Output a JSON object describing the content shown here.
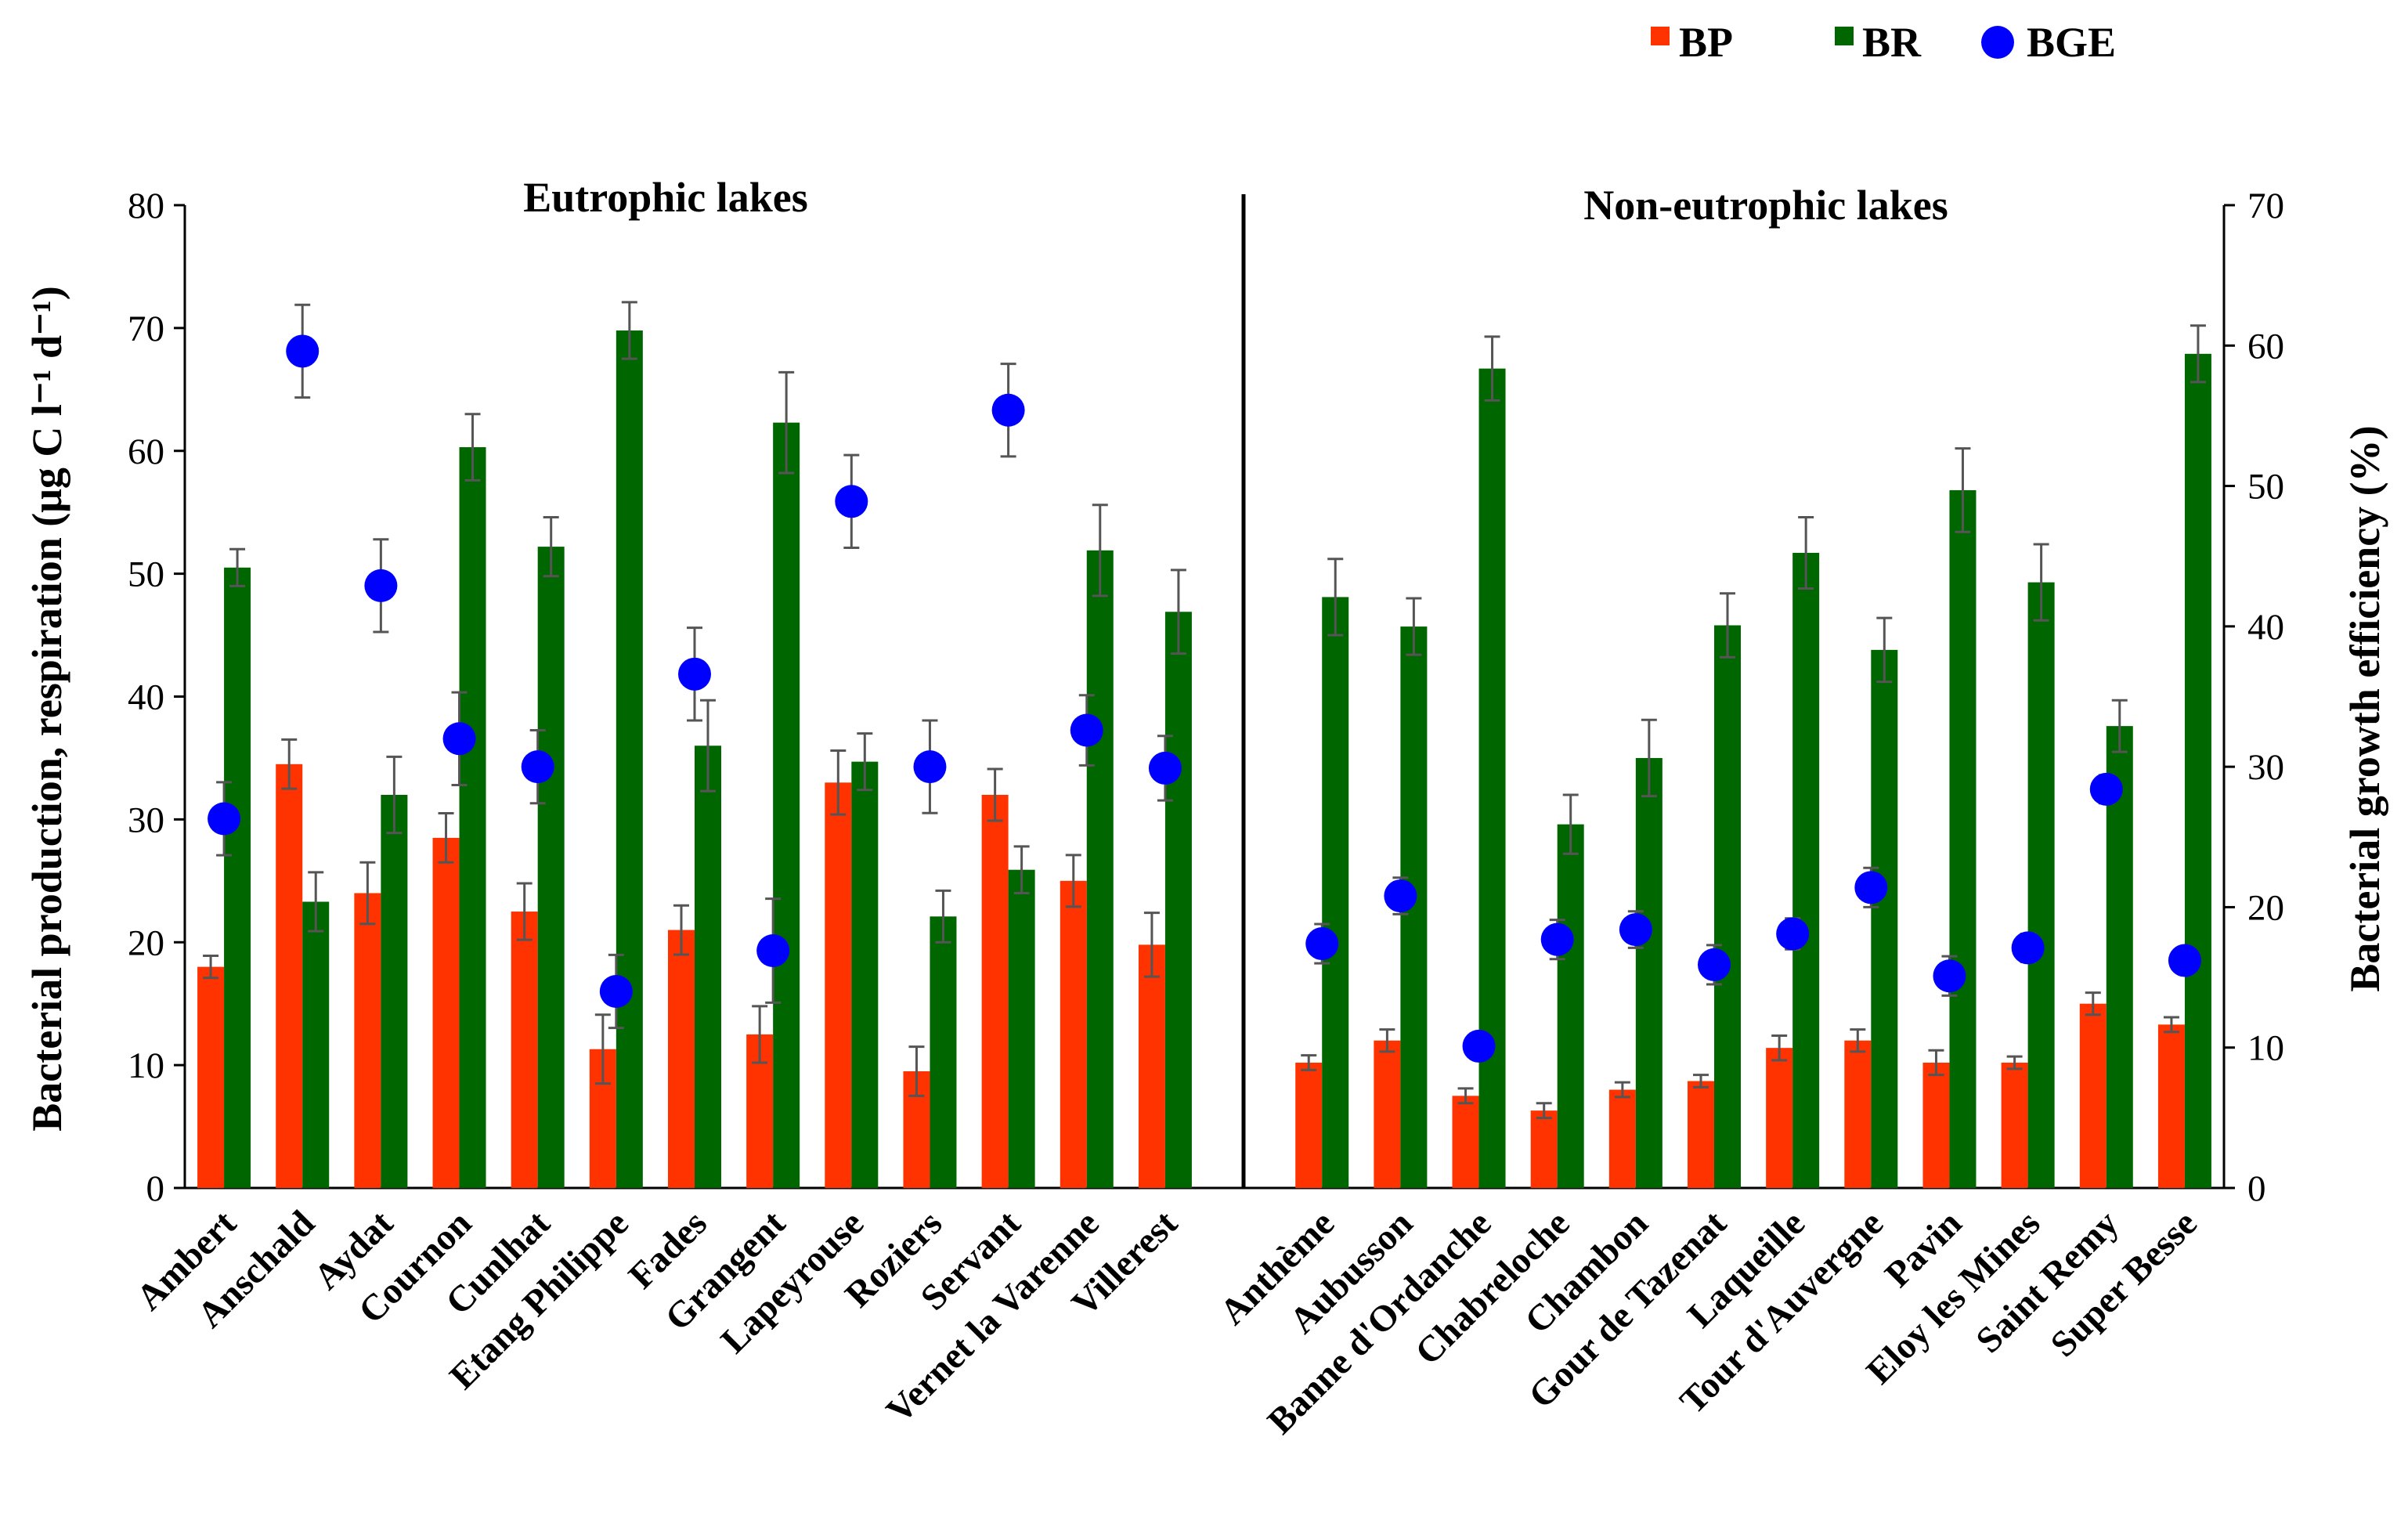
{
  "chart_data": {
    "type": "bar",
    "categories": [
      "Ambert",
      "Anschald",
      "Aydat",
      "Cournon",
      "Cunlhat",
      "Etang Philippe",
      "Fades",
      "Grangent",
      "Lapeyrouse",
      "Roziers",
      "Servant",
      "Vernet la Varenne",
      "Villerest",
      "",
      "Anthème",
      "Aubusson",
      "Banne d'Ordanche",
      "Chabreloche",
      "Chambon",
      "Gour de Tazenat",
      "Laqueille",
      "Tour d'Auvergne",
      "Pavin",
      "Eloy les Mines",
      "Saint Remy",
      "Super Besse"
    ],
    "ylabel_left": "Bacterial production, respiration (μg C l⁻¹ d⁻¹)",
    "ylabel_right": "Bacterial growth efficiency (%)",
    "ylim_left": [
      0,
      80
    ],
    "ylim_right": [
      0,
      70
    ],
    "yticks_left": [
      "0",
      "10",
      "20",
      "30",
      "40",
      "50",
      "60",
      "70",
      "80"
    ],
    "yticks_right": [
      "0",
      "10",
      "20",
      "30",
      "40",
      "50",
      "60",
      "70"
    ],
    "group_labels": [
      "Eutrophic lakes",
      "Non-eutrophic lakes"
    ],
    "grid": false,
    "legend_position": "top-right",
    "colors": {
      "BP": "#ff3300",
      "BR": "#006600",
      "BGE": "#0000ff",
      "error": "#555555"
    },
    "series": [
      {
        "name": "BP",
        "type": "bar",
        "axis": "left",
        "values": [
          18.0,
          34.5,
          24.0,
          28.5,
          22.5,
          11.3,
          21.0,
          12.5,
          33.0,
          9.5,
          32.0,
          25.0,
          19.8,
          null,
          10.2,
          12.0,
          7.5,
          6.3,
          8.0,
          8.7,
          11.4,
          12.0,
          10.2,
          10.2,
          15.0,
          13.3
        ],
        "errors": [
          0.9,
          2.0,
          2.5,
          2.0,
          2.3,
          2.8,
          2.0,
          2.3,
          2.6,
          2.0,
          2.1,
          2.1,
          2.6,
          null,
          0.6,
          0.9,
          0.6,
          0.6,
          0.6,
          0.5,
          1.0,
          0.9,
          1.0,
          0.5,
          0.9,
          0.6
        ]
      },
      {
        "name": "BR",
        "type": "bar",
        "axis": "left",
        "values": [
          50.5,
          23.3,
          32.0,
          60.3,
          52.2,
          69.8,
          36.0,
          62.3,
          34.7,
          22.1,
          25.9,
          51.9,
          46.9,
          null,
          48.1,
          45.7,
          66.7,
          29.6,
          35.0,
          45.8,
          51.7,
          43.8,
          56.8,
          49.3,
          37.6,
          67.9
        ],
        "errors": [
          1.5,
          2.4,
          3.1,
          2.7,
          2.4,
          2.3,
          3.7,
          4.1,
          2.3,
          2.1,
          1.9,
          3.7,
          3.4,
          null,
          3.1,
          2.3,
          2.6,
          2.4,
          3.1,
          2.6,
          2.9,
          2.6,
          3.4,
          3.1,
          2.1,
          2.3
        ]
      },
      {
        "name": "BGE",
        "type": "scatter",
        "axis": "right",
        "values": [
          26.3,
          59.6,
          42.9,
          32.0,
          30.0,
          14.0,
          36.6,
          16.9,
          48.9,
          30.0,
          55.4,
          32.6,
          29.9,
          null,
          17.4,
          20.8,
          10.1,
          17.7,
          18.4,
          15.9,
          18.1,
          21.4,
          15.1,
          17.1,
          28.4,
          16.2
        ],
        "errors": [
          2.6,
          3.3,
          3.3,
          3.3,
          2.6,
          2.6,
          3.3,
          3.7,
          3.3,
          3.3,
          3.3,
          2.5,
          2.3,
          null,
          1.4,
          1.3,
          0.8,
          1.4,
          1.3,
          1.4,
          1.1,
          1.4,
          1.4,
          1.0,
          1.0,
          0.8
        ]
      }
    ]
  }
}
